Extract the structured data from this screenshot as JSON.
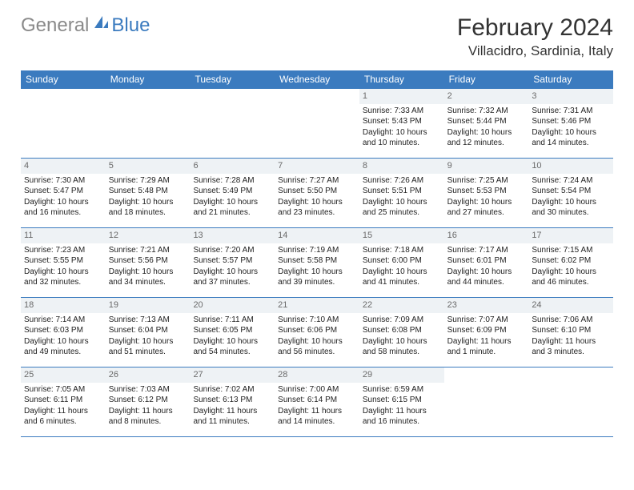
{
  "logo": {
    "general": "General",
    "blue": "Blue"
  },
  "header": {
    "title": "February 2024",
    "location": "Villacidro, Sardinia, Italy"
  },
  "colors": {
    "accent": "#3b7bbf",
    "band": "#eef2f5",
    "text": "#333333",
    "logo_gray": "#8a8a8a"
  },
  "day_names": [
    "Sunday",
    "Monday",
    "Tuesday",
    "Wednesday",
    "Thursday",
    "Friday",
    "Saturday"
  ],
  "weeks": [
    [
      {
        "blank": true
      },
      {
        "blank": true
      },
      {
        "blank": true
      },
      {
        "blank": true
      },
      {
        "day": 1,
        "sunrise": "7:33 AM",
        "sunset": "5:43 PM",
        "dl1": "Daylight: 10 hours",
        "dl2": "and 10 minutes."
      },
      {
        "day": 2,
        "sunrise": "7:32 AM",
        "sunset": "5:44 PM",
        "dl1": "Daylight: 10 hours",
        "dl2": "and 12 minutes."
      },
      {
        "day": 3,
        "sunrise": "7:31 AM",
        "sunset": "5:46 PM",
        "dl1": "Daylight: 10 hours",
        "dl2": "and 14 minutes."
      }
    ],
    [
      {
        "day": 4,
        "sunrise": "7:30 AM",
        "sunset": "5:47 PM",
        "dl1": "Daylight: 10 hours",
        "dl2": "and 16 minutes."
      },
      {
        "day": 5,
        "sunrise": "7:29 AM",
        "sunset": "5:48 PM",
        "dl1": "Daylight: 10 hours",
        "dl2": "and 18 minutes."
      },
      {
        "day": 6,
        "sunrise": "7:28 AM",
        "sunset": "5:49 PM",
        "dl1": "Daylight: 10 hours",
        "dl2": "and 21 minutes."
      },
      {
        "day": 7,
        "sunrise": "7:27 AM",
        "sunset": "5:50 PM",
        "dl1": "Daylight: 10 hours",
        "dl2": "and 23 minutes."
      },
      {
        "day": 8,
        "sunrise": "7:26 AM",
        "sunset": "5:51 PM",
        "dl1": "Daylight: 10 hours",
        "dl2": "and 25 minutes."
      },
      {
        "day": 9,
        "sunrise": "7:25 AM",
        "sunset": "5:53 PM",
        "dl1": "Daylight: 10 hours",
        "dl2": "and 27 minutes."
      },
      {
        "day": 10,
        "sunrise": "7:24 AM",
        "sunset": "5:54 PM",
        "dl1": "Daylight: 10 hours",
        "dl2": "and 30 minutes."
      }
    ],
    [
      {
        "day": 11,
        "sunrise": "7:23 AM",
        "sunset": "5:55 PM",
        "dl1": "Daylight: 10 hours",
        "dl2": "and 32 minutes."
      },
      {
        "day": 12,
        "sunrise": "7:21 AM",
        "sunset": "5:56 PM",
        "dl1": "Daylight: 10 hours",
        "dl2": "and 34 minutes."
      },
      {
        "day": 13,
        "sunrise": "7:20 AM",
        "sunset": "5:57 PM",
        "dl1": "Daylight: 10 hours",
        "dl2": "and 37 minutes."
      },
      {
        "day": 14,
        "sunrise": "7:19 AM",
        "sunset": "5:58 PM",
        "dl1": "Daylight: 10 hours",
        "dl2": "and 39 minutes."
      },
      {
        "day": 15,
        "sunrise": "7:18 AM",
        "sunset": "6:00 PM",
        "dl1": "Daylight: 10 hours",
        "dl2": "and 41 minutes."
      },
      {
        "day": 16,
        "sunrise": "7:17 AM",
        "sunset": "6:01 PM",
        "dl1": "Daylight: 10 hours",
        "dl2": "and 44 minutes."
      },
      {
        "day": 17,
        "sunrise": "7:15 AM",
        "sunset": "6:02 PM",
        "dl1": "Daylight: 10 hours",
        "dl2": "and 46 minutes."
      }
    ],
    [
      {
        "day": 18,
        "sunrise": "7:14 AM",
        "sunset": "6:03 PM",
        "dl1": "Daylight: 10 hours",
        "dl2": "and 49 minutes."
      },
      {
        "day": 19,
        "sunrise": "7:13 AM",
        "sunset": "6:04 PM",
        "dl1": "Daylight: 10 hours",
        "dl2": "and 51 minutes."
      },
      {
        "day": 20,
        "sunrise": "7:11 AM",
        "sunset": "6:05 PM",
        "dl1": "Daylight: 10 hours",
        "dl2": "and 54 minutes."
      },
      {
        "day": 21,
        "sunrise": "7:10 AM",
        "sunset": "6:06 PM",
        "dl1": "Daylight: 10 hours",
        "dl2": "and 56 minutes."
      },
      {
        "day": 22,
        "sunrise": "7:09 AM",
        "sunset": "6:08 PM",
        "dl1": "Daylight: 10 hours",
        "dl2": "and 58 minutes."
      },
      {
        "day": 23,
        "sunrise": "7:07 AM",
        "sunset": "6:09 PM",
        "dl1": "Daylight: 11 hours",
        "dl2": "and 1 minute."
      },
      {
        "day": 24,
        "sunrise": "7:06 AM",
        "sunset": "6:10 PM",
        "dl1": "Daylight: 11 hours",
        "dl2": "and 3 minutes."
      }
    ],
    [
      {
        "day": 25,
        "sunrise": "7:05 AM",
        "sunset": "6:11 PM",
        "dl1": "Daylight: 11 hours",
        "dl2": "and 6 minutes."
      },
      {
        "day": 26,
        "sunrise": "7:03 AM",
        "sunset": "6:12 PM",
        "dl1": "Daylight: 11 hours",
        "dl2": "and 8 minutes."
      },
      {
        "day": 27,
        "sunrise": "7:02 AM",
        "sunset": "6:13 PM",
        "dl1": "Daylight: 11 hours",
        "dl2": "and 11 minutes."
      },
      {
        "day": 28,
        "sunrise": "7:00 AM",
        "sunset": "6:14 PM",
        "dl1": "Daylight: 11 hours",
        "dl2": "and 14 minutes."
      },
      {
        "day": 29,
        "sunrise": "6:59 AM",
        "sunset": "6:15 PM",
        "dl1": "Daylight: 11 hours",
        "dl2": "and 16 minutes."
      },
      {
        "blank": true
      },
      {
        "blank": true
      }
    ]
  ],
  "labels": {
    "sunrise_prefix": "Sunrise: ",
    "sunset_prefix": "Sunset: "
  }
}
